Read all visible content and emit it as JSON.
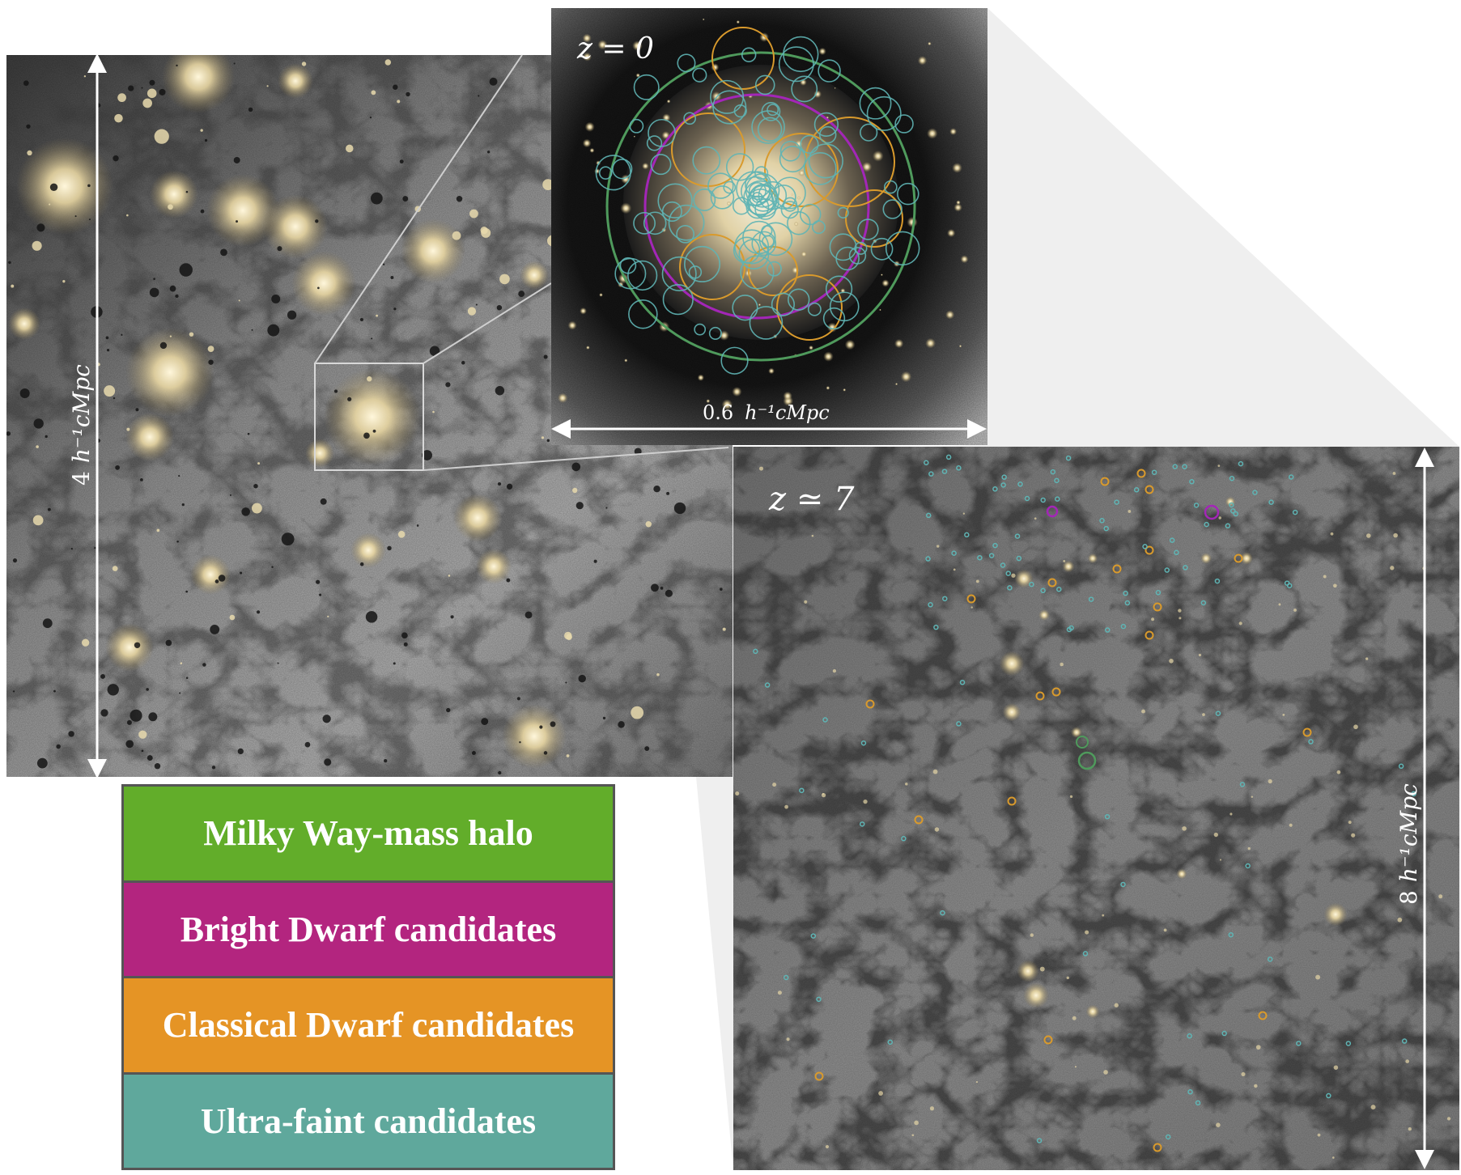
{
  "panels": {
    "left": {
      "scale_label_num": "4",
      "scale_label_unit": "h⁻¹cMpc"
    },
    "inset": {
      "redshift_label": "z = 0",
      "scale_label_num": "0.6",
      "scale_label_unit": "h⁻¹cMpc"
    },
    "right": {
      "redshift_label": "z ≃ 7",
      "scale_label_num": "8",
      "scale_label_unit": "h⁻¹cMpc"
    }
  },
  "legend": {
    "items": [
      {
        "label": "Milky Way-mass halo",
        "color": "#62ad2a"
      },
      {
        "label": "Bright Dwarf candidates",
        "color": "#b3257f"
      },
      {
        "label": "Classical Dwarf candidates",
        "color": "#e59425"
      },
      {
        "label": "Ultra-faint candidates",
        "color": "#5fa89c"
      }
    ]
  },
  "colors": {
    "milky_way": "#4f9a5c",
    "bright_dwarf": "#a326b7",
    "classical_dwarf": "#d99a2c",
    "ultra_faint": "#5fb4b4",
    "halo_glow": "#f3e4b7"
  }
}
